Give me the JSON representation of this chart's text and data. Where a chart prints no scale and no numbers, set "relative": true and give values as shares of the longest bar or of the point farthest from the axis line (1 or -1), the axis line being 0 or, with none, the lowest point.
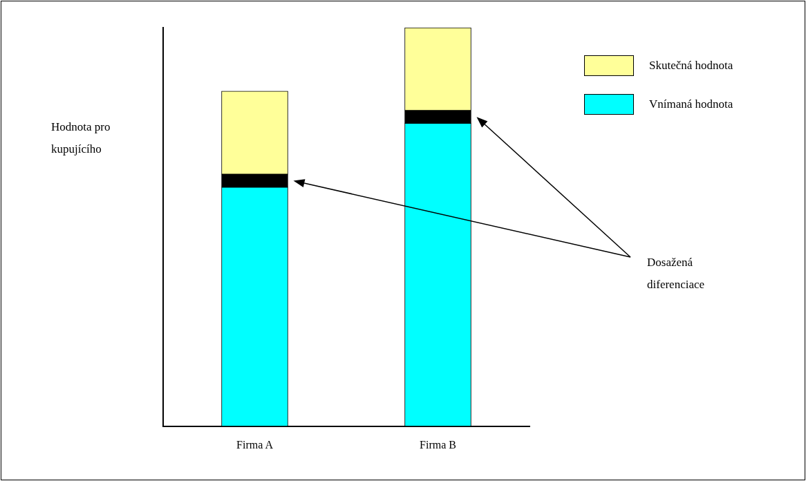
{
  "chart_data": {
    "type": "bar",
    "stacked": true,
    "relative": true,
    "ylabel": "Hodnota pro kupujícího",
    "categories": [
      "Firma A",
      "Firma B"
    ],
    "series": [
      {
        "name": "Vnímaná hodnota",
        "color": "#00ffff",
        "values": [
          0.6,
          0.76
        ]
      },
      {
        "color": "#000000",
        "values": [
          0.032,
          0.032
        ]
      },
      {
        "name": "Skutečná hodnota",
        "color": "#ffff99",
        "values": [
          0.209,
          0.208
        ]
      }
    ],
    "legend": "top right",
    "grid": false,
    "annotations": [
      "Dosažená diferenciace"
    ]
  }
}
